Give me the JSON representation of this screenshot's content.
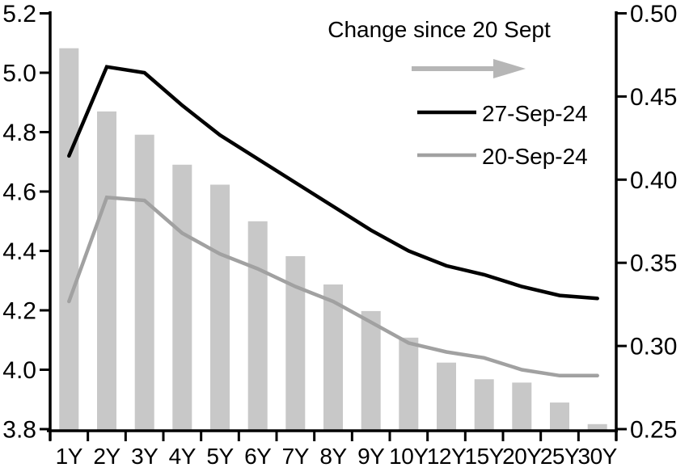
{
  "chart_data": {
    "type": "bar",
    "subtype": "combo-bar-line-dual-axis",
    "title": "",
    "categories": [
      "1Y",
      "2Y",
      "3Y",
      "4Y",
      "5Y",
      "6Y",
      "7Y",
      "8Y",
      "9Y",
      "10Y",
      "12Y",
      "15Y",
      "20Y",
      "25Y",
      "30Y"
    ],
    "series": [
      {
        "name": "Change since 20 Sept",
        "type": "bar",
        "axis": "right",
        "color": "#c8c8c8",
        "values": [
          0.479,
          0.441,
          0.427,
          0.409,
          0.397,
          0.375,
          0.354,
          0.337,
          0.321,
          0.305,
          0.29,
          0.28,
          0.278,
          0.266,
          0.253
        ]
      },
      {
        "name": "27-Sep-24",
        "type": "line",
        "axis": "left",
        "color": "#000000",
        "values": [
          4.72,
          5.02,
          5.0,
          4.89,
          4.79,
          4.71,
          4.63,
          4.55,
          4.47,
          4.4,
          4.35,
          4.32,
          4.28,
          4.25,
          4.24
        ]
      },
      {
        "name": "20-Sep-24",
        "type": "line",
        "axis": "left",
        "color": "#a1a1a1",
        "values": [
          4.23,
          4.58,
          4.57,
          4.46,
          4.39,
          4.34,
          4.28,
          4.23,
          4.16,
          4.09,
          4.06,
          4.04,
          4.0,
          3.98,
          3.98
        ]
      }
    ],
    "left_axis": {
      "min": 3.8,
      "max": 5.2,
      "step": 0.2,
      "tick_labels": [
        "5.2",
        "5.0",
        "4.8",
        "4.6",
        "4.4",
        "4.2",
        "4.0",
        "3.8"
      ]
    },
    "right_axis": {
      "min": 0.25,
      "max": 0.5,
      "step": 0.05,
      "tick_labels": [
        "0.50",
        "0.45",
        "0.40",
        "0.35",
        "0.30",
        "0.25"
      ]
    },
    "xlabel": "",
    "ylabel": "",
    "grid": false,
    "legend_position": "inside-top-center",
    "legend": {
      "title": "Change since 20 Sept",
      "arrow_icon": "right-arrow",
      "arrow_color": "#b6b6b6",
      "entries": [
        {
          "label": "27-Sep-24",
          "color": "#000000"
        },
        {
          "label": "20-Sep-24",
          "color": "#a1a1a1"
        }
      ]
    }
  }
}
